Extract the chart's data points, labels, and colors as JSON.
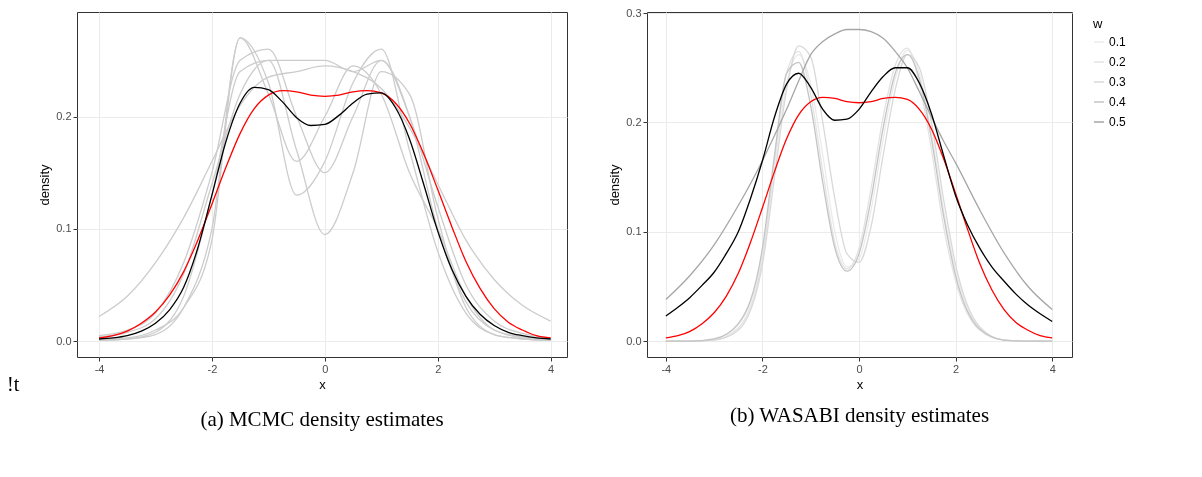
{
  "chart_data": [
    {
      "type": "line",
      "title": "(a) MCMC density estimates",
      "xlabel": "x",
      "ylabel": "density",
      "annotations": [
        "!t"
      ],
      "xlim": [
        -4.39,
        4.29
      ],
      "ylim": [
        -0.014,
        0.293
      ],
      "xticks": [
        -4,
        -2,
        0,
        2,
        4
      ],
      "yticks": [
        {
          "value": 0,
          "label": "0.0"
        },
        0.1,
        0.2
      ],
      "grid": true,
      "legend": false,
      "x": [
        -4,
        -3.5,
        -3,
        -2.5,
        -2,
        -1.5,
        -1,
        -0.5,
        0,
        0.5,
        1,
        1.5,
        2,
        2.5,
        3,
        3.5,
        4
      ],
      "series": [
        {
          "color": "#cccccc",
          "values": [
            0.022,
            0.04,
            0.07,
            0.11,
            0.16,
            0.21,
            0.235,
            0.24,
            0.245,
            0.24,
            0.225,
            0.19,
            0.14,
            0.09,
            0.055,
            0.032,
            0.018
          ]
        },
        {
          "color": "#cccccc",
          "values": [
            0.001,
            0.002,
            0.008,
            0.04,
            0.13,
            0.24,
            0.25,
            0.17,
            0.095,
            0.15,
            0.24,
            0.22,
            0.11,
            0.03,
            0.006,
            0.002,
            0.001
          ]
        },
        {
          "color": "#cccccc",
          "values": [
            0.005,
            0.01,
            0.025,
            0.07,
            0.15,
            0.25,
            0.26,
            0.2,
            0.15,
            0.2,
            0.25,
            0.2,
            0.12,
            0.05,
            0.018,
            0.007,
            0.003
          ]
        },
        {
          "color": "#cccccc",
          "values": [
            0.002,
            0.003,
            0.01,
            0.03,
            0.09,
            0.27,
            0.23,
            0.13,
            0.16,
            0.23,
            0.26,
            0.17,
            0.08,
            0.025,
            0.006,
            0.002,
            0.001
          ]
        },
        {
          "color": "#cccccc",
          "values": [
            0.001,
            0.002,
            0.006,
            0.03,
            0.1,
            0.27,
            0.22,
            0.16,
            0.2,
            0.245,
            0.22,
            0.15,
            0.1,
            0.04,
            0.01,
            0.003,
            0.001
          ]
        },
        {
          "color": "#cccccc",
          "values": [
            0.004,
            0.008,
            0.02,
            0.06,
            0.14,
            0.22,
            0.25,
            0.25,
            0.25,
            0.24,
            0.25,
            0.2,
            0.1,
            0.035,
            0.01,
            0.004,
            0.002
          ]
        },
        {
          "color": "#ff0000",
          "x": [
            -4,
            -3.75,
            -3.5,
            -3.25,
            -3,
            -2.75,
            -2.5,
            -2.25,
            -2,
            -1.75,
            -1.5,
            -1.25,
            -1,
            -0.75,
            -0.5,
            -0.25,
            0,
            0.25,
            0.5,
            0.75,
            1,
            1.25,
            1.5,
            1.75,
            2,
            2.25,
            2.5,
            2.75,
            3,
            3.25,
            3.5,
            3.75,
            4
          ],
          "values": [
            0.003,
            0.005,
            0.009,
            0.016,
            0.026,
            0.041,
            0.062,
            0.09,
            0.122,
            0.155,
            0.185,
            0.207,
            0.219,
            0.223,
            0.222,
            0.219,
            0.218,
            0.219,
            0.222,
            0.223,
            0.221,
            0.212,
            0.194,
            0.167,
            0.135,
            0.102,
            0.071,
            0.047,
            0.029,
            0.017,
            0.01,
            0.005,
            0.003
          ]
        },
        {
          "color": "#000000",
          "x": [
            -4,
            -3.75,
            -3.5,
            -3.25,
            -3,
            -2.75,
            -2.5,
            -2.25,
            -2,
            -1.75,
            -1.5,
            -1.25,
            -1,
            -0.75,
            -0.5,
            -0.25,
            0,
            0.25,
            0.5,
            0.75,
            1,
            1.25,
            1.5,
            1.75,
            2,
            2.25,
            2.5,
            2.75,
            3,
            3.25,
            3.5,
            3.75,
            4
          ],
          "values": [
            0.002,
            0.003,
            0.005,
            0.009,
            0.016,
            0.028,
            0.048,
            0.083,
            0.13,
            0.178,
            0.212,
            0.226,
            0.224,
            0.213,
            0.199,
            0.192,
            0.193,
            0.201,
            0.212,
            0.22,
            0.221,
            0.208,
            0.18,
            0.14,
            0.098,
            0.064,
            0.04,
            0.024,
            0.014,
            0.008,
            0.005,
            0.003,
            0.002
          ]
        }
      ]
    },
    {
      "type": "line",
      "title": "(b) WASABI density estimates",
      "xlabel": "x",
      "ylabel": "density",
      "legend_title": "w",
      "xlim": [
        -4.39,
        4.41
      ],
      "ylim": [
        -0.0145,
        0.301
      ],
      "xticks": [
        -4,
        -2,
        0,
        2,
        4
      ],
      "yticks": [
        {
          "value": 0,
          "label": "0.0"
        },
        0.1,
        0.2,
        0.3
      ],
      "grid": true,
      "legend": "right",
      "x": [
        -4,
        -3.5,
        -3,
        -2.5,
        -2,
        -1.75,
        -1.5,
        -1.25,
        -1,
        -0.75,
        -0.5,
        -0.25,
        0,
        0.25,
        0.5,
        0.75,
        1,
        1.25,
        1.5,
        1.75,
        2,
        2.5,
        3,
        3.5,
        4
      ],
      "series": [
        {
          "name": "0.1",
          "color": "#ebebeb",
          "values": [
            0,
            0,
            0.002,
            0.015,
            0.08,
            0.16,
            0.235,
            0.262,
            0.235,
            0.17,
            0.1,
            0.068,
            0.075,
            0.12,
            0.185,
            0.24,
            0.266,
            0.245,
            0.19,
            0.12,
            0.065,
            0.012,
            0.001,
            0,
            0
          ]
        },
        {
          "name": "0.2",
          "color": "#e3e3e3",
          "values": [
            0,
            0,
            0.001,
            0.012,
            0.075,
            0.165,
            0.245,
            0.265,
            0.225,
            0.155,
            0.09,
            0.066,
            0.085,
            0.14,
            0.205,
            0.252,
            0.268,
            0.235,
            0.175,
            0.105,
            0.055,
            0.01,
            0.001,
            0,
            0
          ]
        },
        {
          "name": "0.3",
          "color": "#d9d9d9",
          "values": [
            0,
            0,
            0.001,
            0.01,
            0.07,
            0.15,
            0.23,
            0.27,
            0.26,
            0.2,
            0.13,
            0.08,
            0.072,
            0.105,
            0.17,
            0.23,
            0.262,
            0.25,
            0.2,
            0.13,
            0.07,
            0.013,
            0.001,
            0,
            0
          ]
        },
        {
          "name": "0.4",
          "color": "#c4c4c4",
          "values": [
            0,
            0,
            0.002,
            0.016,
            0.085,
            0.17,
            0.245,
            0.255,
            0.215,
            0.145,
            0.085,
            0.064,
            0.08,
            0.13,
            0.195,
            0.245,
            0.262,
            0.24,
            0.185,
            0.115,
            0.06,
            0.011,
            0.001,
            0,
            0
          ]
        },
        {
          "name": "0.5",
          "color": "#a6a6a6",
          "values": [
            0.038,
            0.06,
            0.088,
            0.124,
            0.165,
            0.188,
            0.212,
            0.238,
            0.262,
            0.274,
            0.281,
            0.285,
            0.285,
            0.283,
            0.277,
            0.265,
            0.25,
            0.228,
            0.205,
            0.183,
            0.163,
            0.12,
            0.081,
            0.05,
            0.029
          ]
        },
        {
          "color": "#ff0000",
          "x": [
            -4,
            -3.75,
            -3.5,
            -3.25,
            -3,
            -2.75,
            -2.5,
            -2.25,
            -2,
            -1.75,
            -1.5,
            -1.25,
            -1,
            -0.75,
            -0.5,
            -0.25,
            0,
            0.25,
            0.5,
            0.75,
            1,
            1.25,
            1.5,
            1.75,
            2,
            2.25,
            2.5,
            2.75,
            3,
            3.25,
            3.5,
            3.75,
            4
          ],
          "values": [
            0.003,
            0.005,
            0.009,
            0.016,
            0.026,
            0.041,
            0.062,
            0.09,
            0.122,
            0.155,
            0.185,
            0.207,
            0.219,
            0.223,
            0.222,
            0.219,
            0.218,
            0.219,
            0.222,
            0.223,
            0.221,
            0.212,
            0.194,
            0.167,
            0.135,
            0.102,
            0.071,
            0.047,
            0.029,
            0.017,
            0.01,
            0.005,
            0.003
          ]
        },
        {
          "color": "#000000",
          "x": [
            -4,
            -3.75,
            -3.5,
            -3.25,
            -3,
            -2.75,
            -2.5,
            -2.25,
            -2,
            -1.75,
            -1.5,
            -1.25,
            -1,
            -0.75,
            -0.5,
            -0.25,
            0,
            0.25,
            0.5,
            0.75,
            1,
            1.25,
            1.5,
            1.75,
            2,
            2.25,
            2.5,
            2.75,
            3,
            3.25,
            3.5,
            3.75,
            4
          ],
          "values": [
            0.023,
            0.031,
            0.04,
            0.051,
            0.063,
            0.08,
            0.1,
            0.13,
            0.165,
            0.205,
            0.235,
            0.245,
            0.232,
            0.212,
            0.202,
            0.203,
            0.212,
            0.228,
            0.242,
            0.25,
            0.25,
            0.236,
            0.208,
            0.17,
            0.133,
            0.106,
            0.085,
            0.068,
            0.055,
            0.043,
            0.033,
            0.025,
            0.018
          ]
        }
      ]
    }
  ]
}
